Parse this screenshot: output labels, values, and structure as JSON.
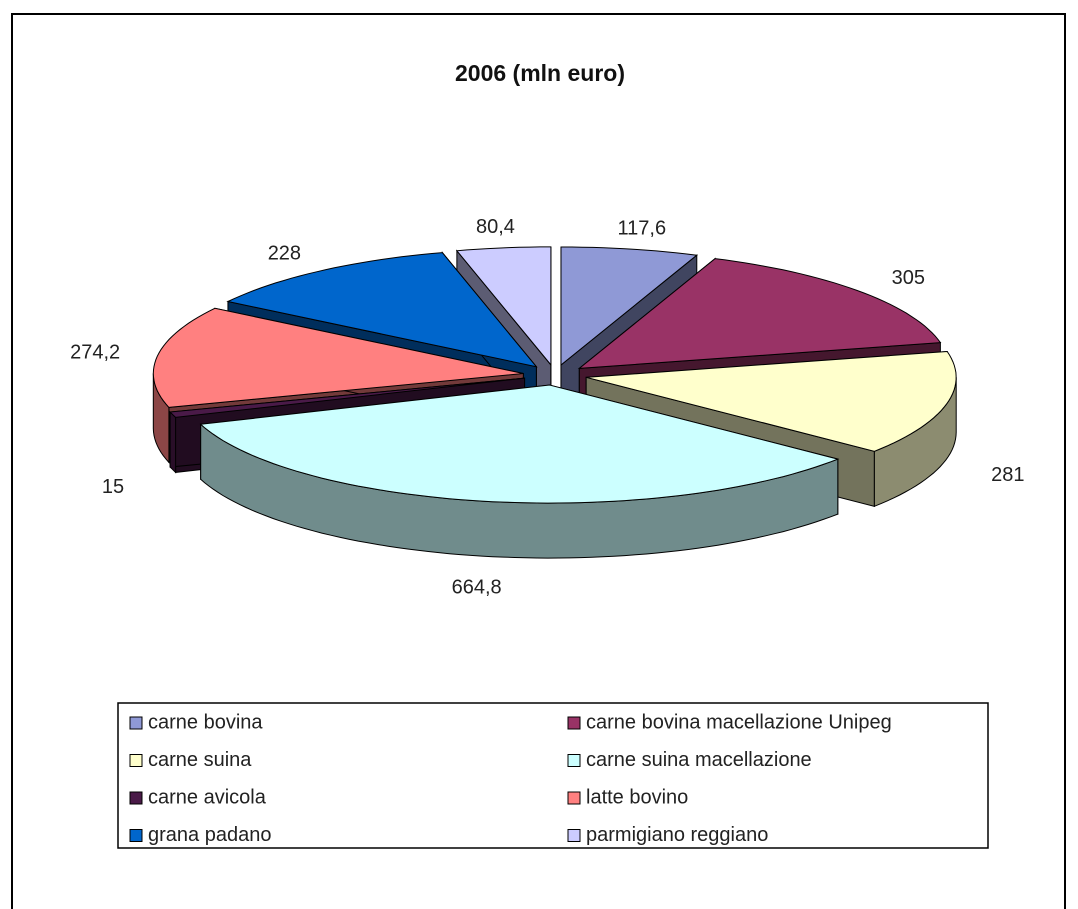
{
  "chart_data": {
    "type": "pie3d",
    "title": "2006 (mln euro)",
    "categories": [
      "carne bovina",
      "carne bovina macellazione Unipeg",
      "carne suina",
      "carne suina macellazione",
      "carne avicola",
      "latte bovino",
      "grana padano",
      "parmigiano reggiano"
    ],
    "values": [
      117.6,
      305,
      281,
      664.8,
      15,
      274.2,
      228,
      80.4
    ],
    "value_labels": [
      "117,6",
      "305",
      "281",
      "664,8",
      "15",
      "274,2",
      "228",
      "80,4"
    ],
    "colors": [
      "#8f99d6",
      "#993366",
      "#ffffcc",
      "#ccffff",
      "#4a1a48",
      "#ff8080",
      "#0066cc",
      "#ccccff"
    ],
    "legend": "bottom"
  }
}
